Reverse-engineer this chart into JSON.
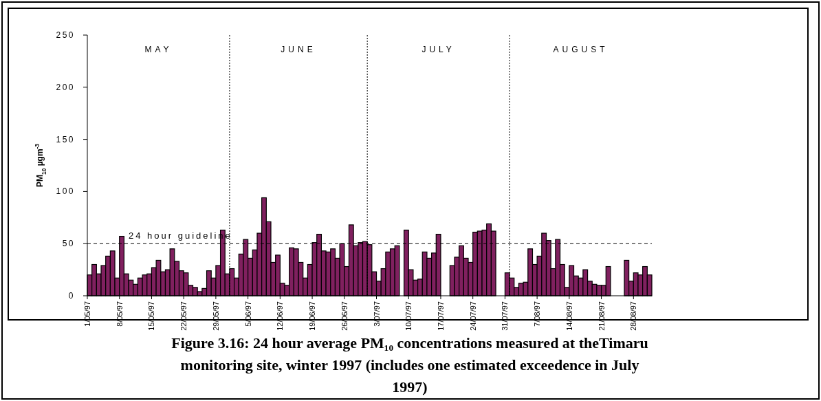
{
  "chart_data": {
    "type": "bar",
    "title": "Figure 3.16: 24 hour average PM₁₀ concentrations measured at theTimaru monitoring site, winter 1997 (includes one estimated exceedence in July 1997)",
    "ylabel": "PM$_{10}$ µgm$^{-3}$",
    "x": [
      "1997-05-01",
      "1997-05-02",
      "1997-05-03",
      "1997-05-04",
      "1997-05-05",
      "1997-05-06",
      "1997-05-07",
      "1997-05-08",
      "1997-05-09",
      "1997-05-10",
      "1997-05-11",
      "1997-05-12",
      "1997-05-13",
      "1997-05-14",
      "1997-05-15",
      "1997-05-16",
      "1997-05-17",
      "1997-05-18",
      "1997-05-19",
      "1997-05-20",
      "1997-05-21",
      "1997-05-22",
      "1997-05-23",
      "1997-05-24",
      "1997-05-25",
      "1997-05-26",
      "1997-05-27",
      "1997-05-28",
      "1997-05-29",
      "1997-05-30",
      "1997-05-31",
      "1997-06-01",
      "1997-06-02",
      "1997-06-03",
      "1997-06-04",
      "1997-06-05",
      "1997-06-06",
      "1997-06-07",
      "1997-06-08",
      "1997-06-09",
      "1997-06-10",
      "1997-06-11",
      "1997-06-12",
      "1997-06-13",
      "1997-06-14",
      "1997-06-15",
      "1997-06-16",
      "1997-06-17",
      "1997-06-18",
      "1997-06-19",
      "1997-06-20",
      "1997-06-21",
      "1997-06-22",
      "1997-06-23",
      "1997-06-24",
      "1997-06-25",
      "1997-06-26",
      "1997-06-27",
      "1997-06-28",
      "1997-06-29",
      "1997-06-30",
      "1997-07-01",
      "1997-07-02",
      "1997-07-03",
      "1997-07-04",
      "1997-07-05",
      "1997-07-06",
      "1997-07-07",
      "1997-07-09",
      "1997-07-10",
      "1997-07-11",
      "1997-07-12",
      "1997-07-13",
      "1997-07-14",
      "1997-07-15",
      "1997-07-16",
      "1997-07-19",
      "1997-07-20",
      "1997-07-21",
      "1997-07-22",
      "1997-07-23",
      "1997-07-24",
      "1997-07-25",
      "1997-07-26",
      "1997-07-27",
      "1997-07-28",
      "1997-07-31",
      "1997-08-01",
      "1997-08-02",
      "1997-08-03",
      "1997-08-04",
      "1997-08-05",
      "1997-08-06",
      "1997-08-07",
      "1997-08-08",
      "1997-08-09",
      "1997-08-10",
      "1997-08-11",
      "1997-08-12",
      "1997-08-13",
      "1997-08-14",
      "1997-08-15",
      "1997-08-16",
      "1997-08-17",
      "1997-08-18",
      "1997-08-19",
      "1997-08-20",
      "1997-08-21",
      "1997-08-22",
      "1997-08-26",
      "1997-08-27",
      "1997-08-28",
      "1997-08-29",
      "1997-08-30",
      "1997-08-31"
    ],
    "values": [
      20,
      30,
      21,
      29,
      38,
      43,
      17,
      57,
      21,
      15,
      11,
      17,
      20,
      21,
      27,
      34,
      23,
      25,
      45,
      33,
      24,
      22,
      10,
      8,
      4,
      7,
      24,
      17,
      29,
      63,
      21,
      26,
      17,
      40,
      54,
      36,
      44,
      60,
      94,
      71,
      32,
      39,
      12,
      10,
      46,
      45,
      32,
      17,
      30,
      51,
      59,
      43,
      42,
      45,
      36,
      50,
      28,
      68,
      48,
      51,
      52,
      49,
      23,
      14,
      26,
      42,
      45,
      48,
      63,
      25,
      15,
      16,
      42,
      36,
      41,
      59,
      29,
      37,
      48,
      36,
      32,
      61,
      62,
      63,
      69,
      62,
      22,
      17,
      8,
      12,
      13,
      45,
      30,
      38,
      60,
      53,
      26,
      54,
      30,
      8,
      29,
      19,
      17,
      25,
      14,
      11,
      10,
      10,
      28,
      34,
      14,
      22,
      20,
      28,
      20
    ],
    "color": "#80205f",
    "xlim": [
      "1997-05-01",
      "1997-09-01"
    ],
    "xticks": [
      {
        "value": "1997-05-01",
        "label": "1/05/97"
      },
      {
        "value": "1997-05-08",
        "label": "8/05/97"
      },
      {
        "value": "1997-05-15",
        "label": "15/05/97"
      },
      {
        "value": "1997-05-22",
        "label": "22/05/97"
      },
      {
        "value": "1997-05-29",
        "label": "29/05/97"
      },
      {
        "value": "1997-06-05",
        "label": "5/06/97"
      },
      {
        "value": "1997-06-12",
        "label": "12/06/97"
      },
      {
        "value": "1997-06-19",
        "label": "19/06/97"
      },
      {
        "value": "1997-06-26",
        "label": "26/06/97"
      },
      {
        "value": "1997-07-03",
        "label": "3/07/97"
      },
      {
        "value": "1997-07-10",
        "label": "10/07/97"
      },
      {
        "value": "1997-07-17",
        "label": "17/07/97"
      },
      {
        "value": "1997-07-24",
        "label": "24/07/97"
      },
      {
        "value": "1997-07-31",
        "label": "31/07/97"
      },
      {
        "value": "1997-08-07",
        "label": "7/08/97"
      },
      {
        "value": "1997-08-14",
        "label": "14/08/97"
      },
      {
        "value": "1997-08-21",
        "label": "21/08/97"
      },
      {
        "value": "1997-08-28",
        "label": "28/08/97"
      }
    ],
    "ylim": [
      0,
      250
    ],
    "yticks": [
      0,
      50,
      100,
      150,
      200,
      250
    ],
    "ref_lines": [
      {
        "axis": "y",
        "value": 50,
        "label": "24 hour guideline",
        "line_style": "dashed"
      },
      {
        "axis": "x",
        "value": "1997-06-01",
        "label": null,
        "line_style": "dotted"
      },
      {
        "axis": "x",
        "value": "1997-07-01",
        "label": null,
        "line_style": "dotted"
      },
      {
        "axis": "x",
        "value": "1997-08-01",
        "label": null,
        "line_style": "dotted"
      }
    ],
    "annotations": [
      "MAY",
      "JUNE",
      "JULY",
      "AUGUST"
    ]
  }
}
